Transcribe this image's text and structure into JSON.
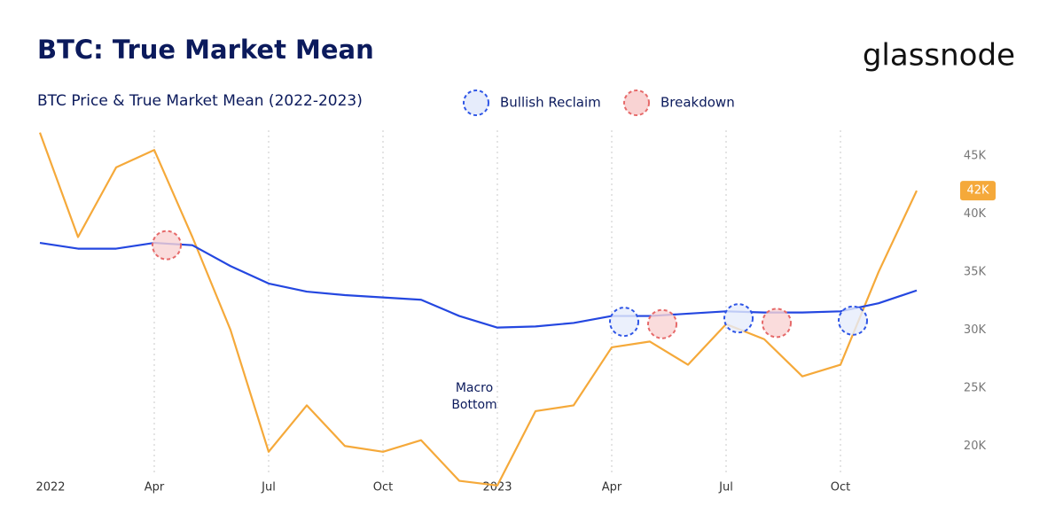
{
  "chart_data": {
    "type": "line",
    "title": "BTC: True Market Mean",
    "subtitle": "BTC Price & True Market Mean (2022-2023)",
    "brand": "glassnode",
    "x": [
      "2022-01",
      "2022-02",
      "2022-03",
      "2022-04",
      "2022-05",
      "2022-06",
      "2022-07",
      "2022-08",
      "2022-09",
      "2022-10",
      "2022-11",
      "2022-12",
      "2023-01",
      "2023-02",
      "2023-03",
      "2023-04",
      "2023-05",
      "2023-06",
      "2023-07",
      "2023-08",
      "2023-09",
      "2023-10",
      "2023-11",
      "2023-12"
    ],
    "series": [
      {
        "color": "#f5a93a",
        "values": [
          47000,
          38000,
          44000,
          45500,
          38000,
          30000,
          19500,
          23500,
          20000,
          19500,
          20500,
          17000,
          16600,
          23000,
          23500,
          28500,
          29000,
          27000,
          30500,
          29200,
          26000,
          27000,
          35000,
          42000
        ],
        "value_labels": [
          null,
          null,
          null,
          null,
          null,
          null,
          null,
          null,
          null,
          null,
          null,
          null,
          null,
          null,
          null,
          null,
          null,
          null,
          null,
          null,
          null,
          null,
          null,
          "42K"
        ]
      },
      {
        "color": "#2447e0",
        "values": [
          37500,
          37000,
          37000,
          37500,
          37300,
          35500,
          34000,
          33300,
          33000,
          32800,
          32600,
          31200,
          30200,
          30300,
          30600,
          31200,
          31200,
          31400,
          31600,
          31500,
          31500,
          31600,
          32300,
          33400
        ]
      }
    ],
    "events": [
      {
        "name": "Bullish Reclaim",
        "color": "#2f56e6",
        "fill": "#e6ecfb",
        "points": [
          {
            "x": "2023-04",
            "y": 30700
          },
          {
            "x": "2023-07",
            "y": 31000
          },
          {
            "x": "2023-10",
            "y": 30800
          }
        ]
      },
      {
        "name": "Breakdown",
        "color": "#e66a6a",
        "fill": "#f9d3d3",
        "points": [
          {
            "x": "2022-04",
            "y": 37300
          },
          {
            "x": "2023-05",
            "y": 30500
          },
          {
            "x": "2023-08",
            "y": 30600
          }
        ]
      }
    ],
    "annotations": [
      {
        "text": "Macro Bottom",
        "x": "2022-12",
        "y": 20500
      }
    ],
    "xticks": [
      {
        "value": "2022-01",
        "label": "2022"
      },
      {
        "value": "2022-04",
        "label": "Apr"
      },
      {
        "value": "2022-07",
        "label": "Jul"
      },
      {
        "value": "2022-10",
        "label": "Oct"
      },
      {
        "value": "2023-01",
        "label": "2023"
      },
      {
        "value": "2023-04",
        "label": "Apr"
      },
      {
        "value": "2023-07",
        "label": "Jul"
      },
      {
        "value": "2023-10",
        "label": "Oct"
      }
    ],
    "ylim": [
      17500,
      47200
    ],
    "yticks": [
      {
        "value": 20000,
        "label": "20K"
      },
      {
        "value": 25000,
        "label": "25K"
      },
      {
        "value": 30000,
        "label": "30K"
      },
      {
        "value": 35000,
        "label": "35K"
      },
      {
        "value": 40000,
        "label": "40K"
      },
      {
        "value": 45000,
        "label": "45K"
      }
    ],
    "grid": true
  }
}
